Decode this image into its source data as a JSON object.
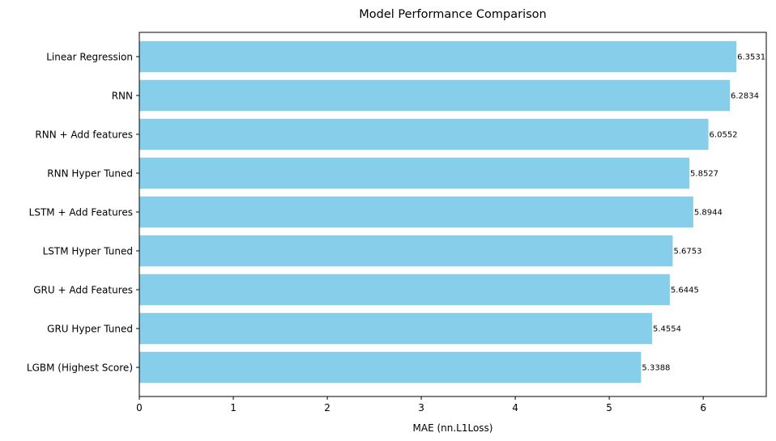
{
  "chart_data": {
    "type": "bar",
    "orientation": "horizontal",
    "title": "Model Performance Comparison",
    "xlabel": "MAE (nn.L1Loss)",
    "ylabel": "",
    "categories": [
      "Linear Regression",
      "RNN",
      "RNN + Add features",
      "RNN Hyper Tuned",
      "LSTM + Add Features",
      "LSTM Hyper Tuned",
      "GRU + Add Features",
      "GRU Hyper Tuned",
      "LGBM (Highest Score)"
    ],
    "values": [
      6.3531,
      6.2834,
      6.0552,
      5.8527,
      5.8944,
      5.6753,
      5.6445,
      5.4554,
      5.3388
    ],
    "value_labels": [
      "6.3531",
      "6.2834",
      "6.0552",
      "5.8527",
      "5.8944",
      "5.6753",
      "5.6445",
      "5.4554",
      "5.3388"
    ],
    "xlim": [
      0,
      6.671
    ],
    "xticks": [
      0,
      1,
      2,
      3,
      4,
      5,
      6
    ],
    "xtick_labels": [
      "0",
      "1",
      "2",
      "3",
      "4",
      "5",
      "6"
    ],
    "grid": false,
    "legend": "none",
    "bar_color": "#87ceeb"
  }
}
